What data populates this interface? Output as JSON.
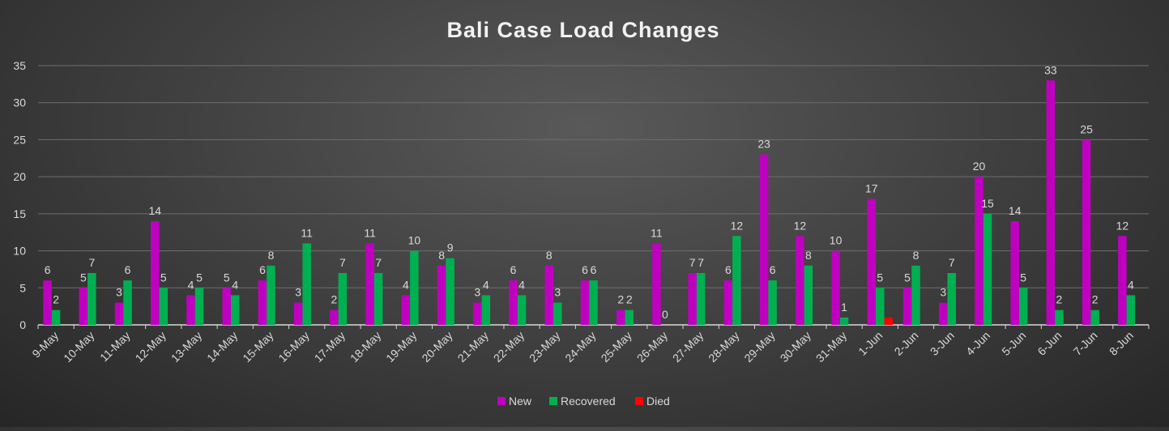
{
  "chart_data": {
    "type": "bar",
    "title": "Bali Case Load Changes",
    "xlabel": "",
    "ylabel": "",
    "ylim": [
      0,
      35
    ],
    "yticks": [
      0,
      5,
      10,
      15,
      20,
      25,
      30,
      35
    ],
    "grid": true,
    "legend_position": "bottom",
    "categories": [
      "9-May",
      "10-May",
      "11-May",
      "12-May",
      "13-May",
      "14-May",
      "15-May",
      "16-May",
      "17-May",
      "18-May",
      "19-May",
      "20-May",
      "21-May",
      "22-May",
      "23-May",
      "24-May",
      "25-May",
      "26-May",
      "27-May",
      "28-May",
      "29-May",
      "30-May",
      "31-May",
      "1-Jun",
      "2-Jun",
      "3-Jun",
      "4-Jun",
      "5-Jun",
      "6-Jun",
      "7-Jun",
      "8-Jun"
    ],
    "series": [
      {
        "name": "New",
        "color": "#c000c0",
        "values": [
          6,
          5,
          3,
          14,
          4,
          5,
          6,
          3,
          2,
          11,
          4,
          8,
          3,
          6,
          8,
          6,
          2,
          11,
          7,
          6,
          23,
          12,
          10,
          17,
          5,
          3,
          20,
          14,
          33,
          25,
          12
        ],
        "labels": [
          "6",
          "5",
          "3",
          "14",
          "4",
          "5",
          "6",
          "3",
          "2",
          "11",
          "4",
          "8",
          "3",
          "6",
          "8",
          "6",
          "2",
          "11",
          "7",
          "6",
          "23",
          "12",
          "10",
          "17",
          "5",
          "3",
          "20",
          "14",
          "33",
          "25",
          "12"
        ]
      },
      {
        "name": "Recovered",
        "color": "#00b050",
        "values": [
          2,
          7,
          6,
          5,
          5,
          4,
          8,
          11,
          7,
          7,
          10,
          9,
          4,
          4,
          3,
          6,
          2,
          0,
          7,
          12,
          6,
          8,
          1,
          5,
          8,
          7,
          15,
          5,
          2,
          2,
          4
        ],
        "labels": [
          "2",
          "7",
          "6",
          "5",
          "5",
          "4",
          "8",
          "11",
          "7",
          "7",
          "10",
          "9",
          "4",
          "4",
          "3",
          "6",
          "2",
          "0",
          "7",
          "12",
          "6",
          "8",
          "1",
          "5",
          "8",
          "7",
          "15",
          "5",
          "2",
          "2",
          "4"
        ]
      },
      {
        "name": "Died",
        "color": "#ff0000",
        "values": [
          0,
          0,
          0,
          0,
          0,
          0,
          0,
          0,
          0,
          0,
          0,
          0,
          0,
          0,
          0,
          0,
          0,
          0,
          0,
          0,
          0,
          0,
          0,
          1,
          0,
          0,
          0,
          0,
          0,
          0,
          0
        ],
        "labels": []
      }
    ]
  }
}
